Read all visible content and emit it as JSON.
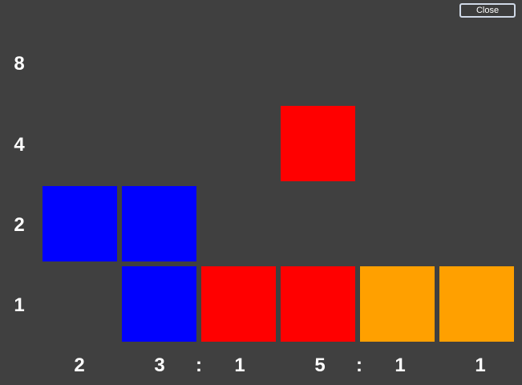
{
  "window": {
    "close_label": "Close"
  },
  "colors": {
    "background": "#404040",
    "blue": "#0000ff",
    "red": "#ff0000",
    "orange": "#ffa000"
  },
  "row_labels": [
    "8",
    "4",
    "2",
    "1"
  ],
  "bottom_labels": [
    "2",
    "3",
    ":",
    "1",
    "5",
    ":",
    "1",
    "1"
  ],
  "grid": {
    "rows": [
      {
        "label": "8",
        "cells": [
          "",
          "",
          "",
          "",
          "",
          ""
        ]
      },
      {
        "label": "4",
        "cells": [
          "",
          "",
          "",
          "red",
          "",
          ""
        ]
      },
      {
        "label": "2",
        "cells": [
          "blue",
          "blue",
          "",
          "",
          "",
          ""
        ]
      },
      {
        "label": "1",
        "cells": [
          "",
          "blue",
          "red",
          "red",
          "orange",
          "orange"
        ]
      }
    ]
  }
}
